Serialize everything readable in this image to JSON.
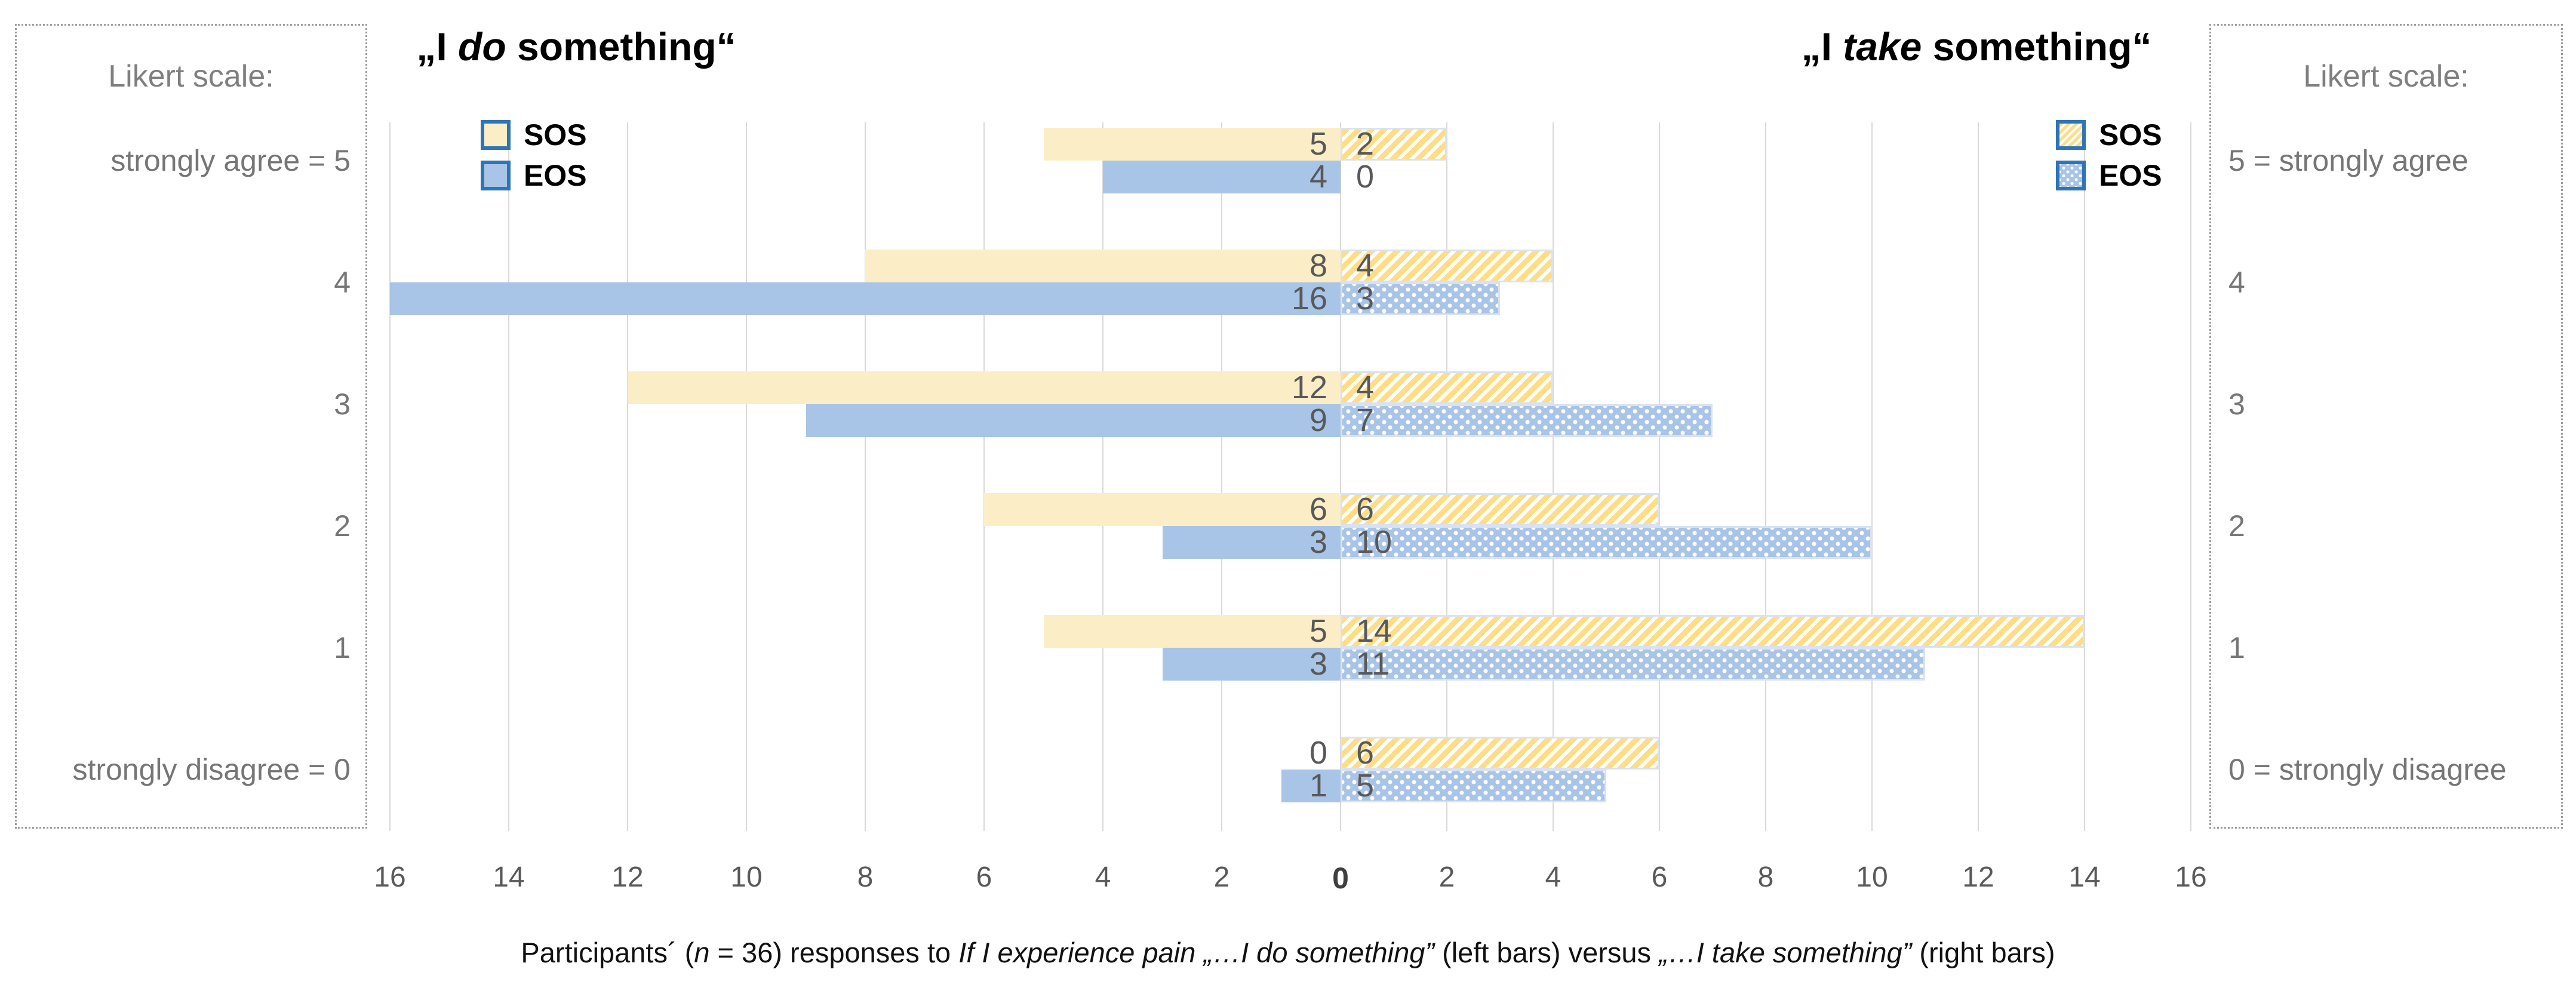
{
  "figure": {
    "left_panel_title": {
      "pre": "„I ",
      "italic": "do",
      "post": " something“"
    },
    "right_panel_title": {
      "pre": "„I ",
      "italic": "take",
      "post": " something“"
    },
    "likert_left": {
      "title": "Likert scale:",
      "labels": [
        "strongly agree = 5",
        "4",
        "3",
        "2",
        "1",
        "strongly disagree = 0"
      ]
    },
    "likert_right": {
      "title": "Likert scale:",
      "labels": [
        "5 = strongly agree",
        "4",
        "3",
        "2",
        "1",
        "0 = strongly disagree"
      ]
    },
    "legend_left": [
      {
        "name": "SOS",
        "swatch": "sw-sos-solid"
      },
      {
        "name": "EOS",
        "swatch": "sw-eos-solid"
      }
    ],
    "legend_right": [
      {
        "name": "SOS",
        "swatch": "sw-sos-hatch"
      },
      {
        "name": "EOS",
        "swatch": "sw-eos-dots"
      }
    ],
    "caption_parts": [
      {
        "text": "Participants´ (",
        "italic": false
      },
      {
        "text": "n",
        "italic": true
      },
      {
        "text": " = 36) responses to ",
        "italic": false
      },
      {
        "text": "If I experience pain ",
        "italic": true
      },
      {
        "text": "„…I do something”",
        "italic": true
      },
      {
        "text": " (left bars) versus ",
        "italic": false
      },
      {
        "text": "„…I take something”",
        "italic": true
      },
      {
        "text": " (right bars)",
        "italic": false
      }
    ]
  },
  "chart_data": {
    "type": "bar",
    "subtype": "diverging-horizontal-likert",
    "categories": [
      "5",
      "4",
      "3",
      "2",
      "1",
      "0"
    ],
    "series": [
      {
        "name": "SOS",
        "panel": "left",
        "pattern": "sos-solid",
        "values": [
          5,
          8,
          12,
          6,
          5,
          0
        ]
      },
      {
        "name": "EOS",
        "panel": "left",
        "pattern": "eos-solid",
        "values": [
          4,
          16,
          9,
          3,
          3,
          1
        ]
      },
      {
        "name": "SOS",
        "panel": "right",
        "pattern": "sos-hatch",
        "values": [
          2,
          4,
          4,
          6,
          14,
          6
        ]
      },
      {
        "name": "EOS",
        "panel": "right",
        "pattern": "eos-dots",
        "values": [
          0,
          3,
          7,
          10,
          11,
          5
        ]
      }
    ],
    "x_ticks_left": [
      16,
      14,
      12,
      10,
      8,
      6,
      4,
      2
    ],
    "x_tick_center": "0",
    "x_ticks_right": [
      2,
      4,
      6,
      8,
      10,
      12,
      14,
      16
    ],
    "xlim": [
      0,
      16
    ],
    "grid": true,
    "legend_position": "top-inside-both-panels"
  },
  "colors": {
    "sos_fill": "#fbeec6",
    "sos_stripe": "#ffdd84",
    "eos_fill": "#a8c4e6",
    "legend_border": "#2e75b6",
    "gridline": "#d9d9d9",
    "pattern_border": "#d9e2f2",
    "likert_text": "#767676",
    "axis_text": "#595959",
    "value_text": "#595959"
  }
}
